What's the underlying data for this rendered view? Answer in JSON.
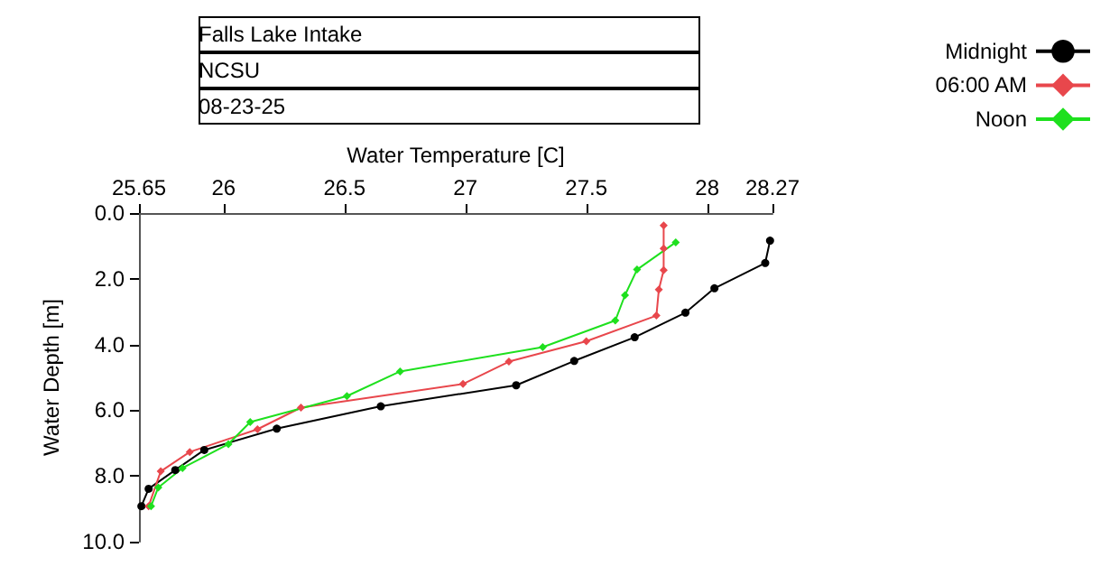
{
  "chart_data": {
    "type": "line",
    "title": "Falls Lake Intake",
    "subtitle": "NCSU",
    "annotations": [
      "08-23-25"
    ],
    "xlabel": "Water Temperature [C]",
    "ylabel": "Water Depth [m]",
    "xlim": [
      25.65,
      28.27
    ],
    "xticks": [
      25.65,
      26,
      26.5,
      27,
      27.5,
      28,
      28.27
    ],
    "ylim": [
      10,
      0
    ],
    "yticks": [
      {
        "value": 0,
        "label": "0.0"
      },
      {
        "value": 2,
        "label": "2.0"
      },
      {
        "value": 4,
        "label": "4.0"
      },
      {
        "value": 6,
        "label": "6.0"
      },
      {
        "value": 8,
        "label": "8.0"
      },
      {
        "value": 10,
        "label": "10.0"
      }
    ],
    "grid": false,
    "legend": "top right",
    "line_style": "solid",
    "series": [
      {
        "name": "Midnight",
        "color": "#000000",
        "marker": "circle",
        "x": [
          28.26,
          28.24,
          28.03,
          27.91,
          27.7,
          27.45,
          27.21,
          26.65,
          26.22,
          25.92,
          25.8,
          25.69,
          25.66
        ],
        "values": [
          0.84,
          1.52,
          2.29,
          3.03,
          3.78,
          4.5,
          5.24,
          5.88,
          6.56,
          7.21,
          7.82,
          8.39,
          8.92
        ]
      },
      {
        "name": "06:00 AM",
        "color": "#e8474c",
        "marker": "diamond",
        "x": [
          27.82,
          27.82,
          27.82,
          27.8,
          27.79,
          27.5,
          27.18,
          26.99,
          26.32,
          26.14,
          25.86,
          25.74,
          25.69
        ],
        "values": [
          0.38,
          1.08,
          1.74,
          2.33,
          3.12,
          3.9,
          4.52,
          5.2,
          5.92,
          6.58,
          7.27,
          7.86,
          8.92
        ]
      },
      {
        "name": "Noon",
        "color": "#1ee01e",
        "marker": "diamond",
        "x": [
          27.87,
          27.71,
          27.66,
          27.62,
          27.32,
          26.73,
          26.51,
          26.11,
          26.02,
          25.83,
          25.73,
          25.7
        ],
        "values": [
          0.89,
          1.72,
          2.5,
          3.27,
          4.08,
          4.82,
          5.57,
          6.36,
          7.03,
          7.76,
          8.35,
          8.92
        ]
      }
    ]
  }
}
